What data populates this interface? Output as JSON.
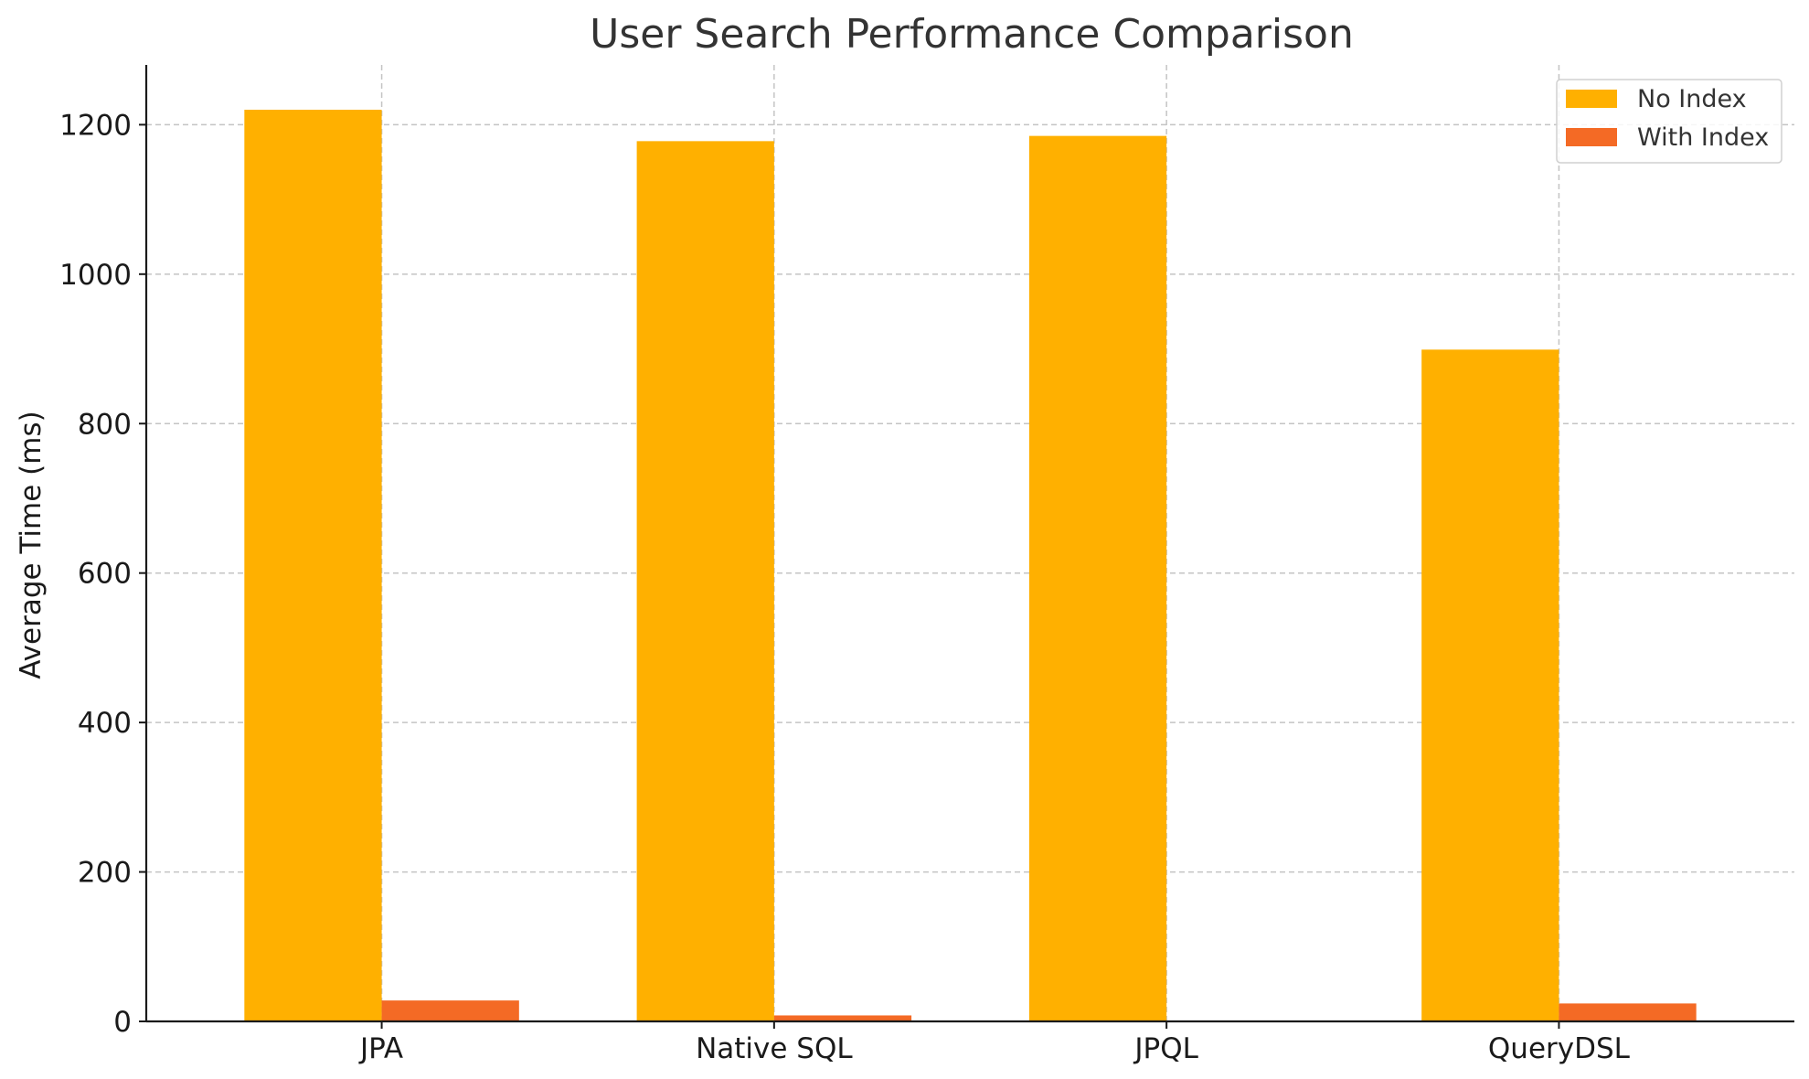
{
  "chart_data": {
    "type": "bar",
    "title": "User Search Performance Comparison",
    "xlabel": "",
    "ylabel": "Average Time (ms)",
    "categories": [
      "JPA",
      "Native SQL",
      "JPQL",
      "QueryDSL"
    ],
    "series": [
      {
        "name": "No Index",
        "color": "#FFB000",
        "values": [
          1220,
          1178,
          1185,
          899
        ]
      },
      {
        "name": "With Index",
        "color": "#F46A25",
        "values": [
          28,
          8,
          1,
          24
        ]
      }
    ],
    "ylim": [
      0,
      1280
    ],
    "yticks": [
      0,
      200,
      400,
      600,
      800,
      1000,
      1200
    ],
    "grid": true,
    "legend_position": "top-right"
  }
}
